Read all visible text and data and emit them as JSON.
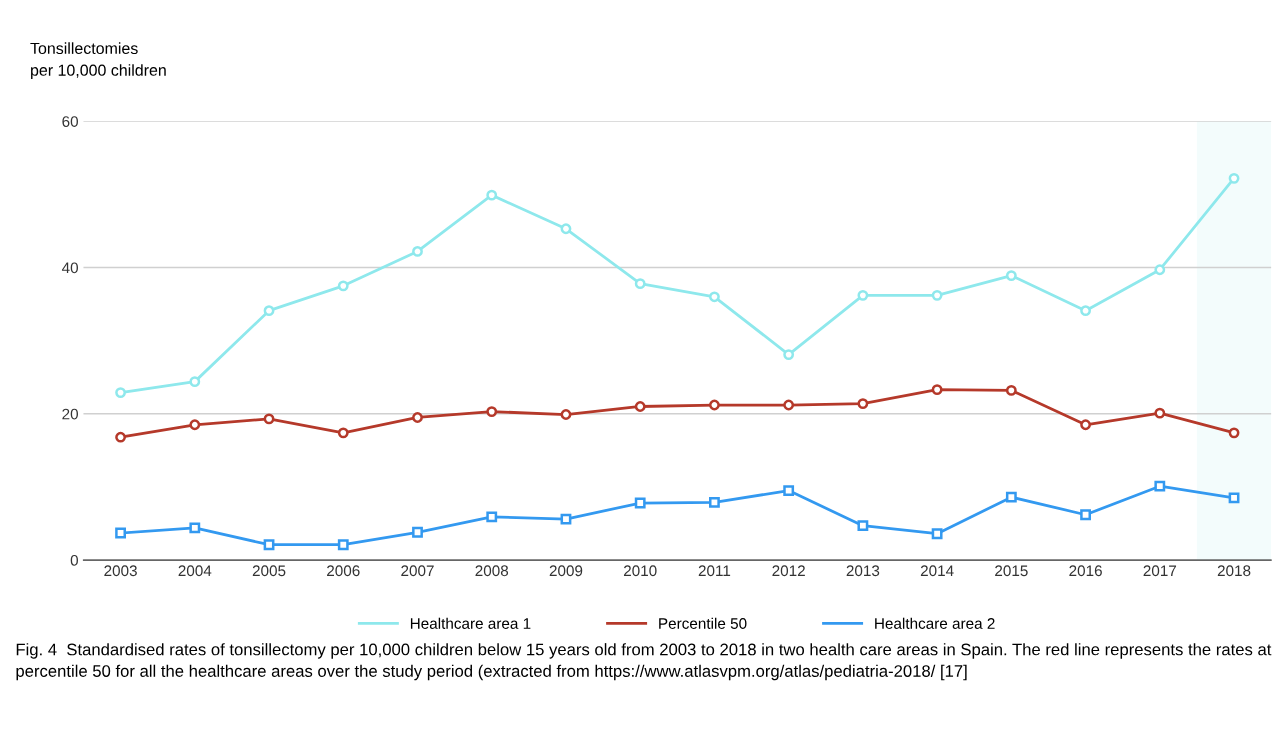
{
  "chart_data": {
    "type": "line",
    "ylabel": "Tonsillectomies\nper 10,000 children",
    "categories": [
      "2003",
      "2004",
      "2005",
      "2006",
      "2007",
      "2008",
      "2009",
      "2010",
      "2011",
      "2012",
      "2013",
      "2014",
      "2015",
      "2016",
      "2017",
      "2018"
    ],
    "series": [
      {
        "name": "Healthcare area 1",
        "color": "#8ee8ec",
        "marker": "circle",
        "values": [
          22.9,
          24.4,
          34.1,
          37.5,
          42.2,
          49.9,
          45.3,
          37.8,
          36.0,
          28.1,
          36.2,
          36.2,
          38.9,
          34.1,
          39.7,
          52.2
        ]
      },
      {
        "name": "Percentile 50",
        "color": "#b5392a",
        "marker": "circle",
        "values": [
          16.8,
          18.5,
          19.3,
          17.4,
          19.5,
          20.3,
          19.9,
          21.0,
          21.2,
          21.2,
          21.4,
          23.3,
          23.2,
          18.5,
          20.1,
          17.4
        ]
      },
      {
        "name": "Healthcare area 2",
        "color": "#3399f0",
        "marker": "square",
        "values": [
          3.7,
          4.4,
          2.1,
          2.1,
          3.8,
          5.9,
          5.6,
          7.8,
          7.9,
          9.5,
          4.7,
          3.6,
          8.6,
          6.2,
          10.1,
          8.5
        ]
      }
    ],
    "bands": [
      {
        "axis": "x",
        "from": "2018",
        "to": "2018",
        "color": "#f3fcfc"
      }
    ],
    "ylim": [
      0,
      60
    ],
    "yticks": [
      0,
      20,
      40,
      60
    ],
    "grid": "y",
    "legend": "bottom",
    "line_style": "solid",
    "annotations": [
      "Fig. 4  Standardised rates of tonsillectomy per 10,000 children below 15 years old from 2003 to 2018 in two health care areas in Spain. The red line represents the rates at percentile 50 for all the healthcare areas over the study period (extracted from https://www.atlasvpm.org/atlas/pediatria-2018/ [17]"
    ]
  }
}
